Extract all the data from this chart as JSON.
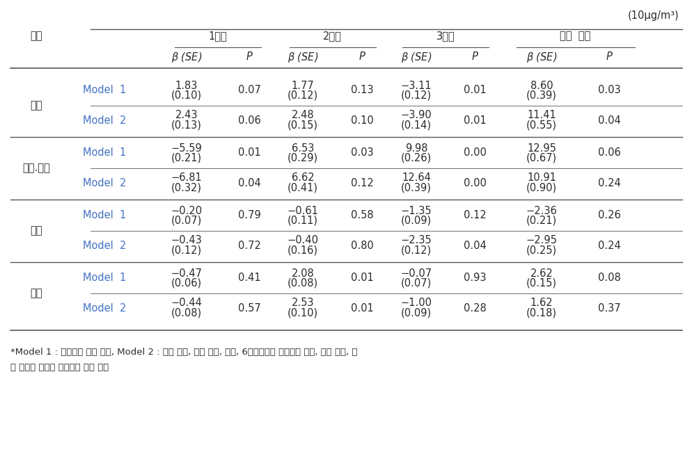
{
  "unit_label": "(10μg/m³)",
  "cities": [
    "서울",
    "천안.아산",
    "울산",
    "전체"
  ],
  "rows": [
    {
      "city": "서울",
      "model": "Model  1",
      "q1_beta": "1.83",
      "q1_se": "(0.10)",
      "q1_p": "0.07",
      "q2_beta": "1.77",
      "q2_se": "(0.12)",
      "q2_p": "0.13",
      "q3_beta": "−3.11",
      "q3_se": "(0.12)",
      "q3_p": "0.01",
      "total_beta": "8.60",
      "total_se": "(0.39)",
      "total_p": "0.03"
    },
    {
      "city": "서울",
      "model": "Model  2",
      "q1_beta": "2.43",
      "q1_se": "(0.13)",
      "q1_p": "0.06",
      "q2_beta": "2.48",
      "q2_se": "(0.15)",
      "q2_p": "0.10",
      "q3_beta": "−3.90",
      "q3_se": "(0.14)",
      "q3_p": "0.01",
      "total_beta": "11.41",
      "total_se": "(0.55)",
      "total_p": "0.04"
    },
    {
      "city": "천안.아산",
      "model": "Model  1",
      "q1_beta": "−5.59",
      "q1_se": "(0.21)",
      "q1_p": "0.01",
      "q2_beta": "6.53",
      "q2_se": "(0.29)",
      "q2_p": "0.03",
      "q3_beta": "9.98",
      "q3_se": "(0.26)",
      "q3_p": "0.00",
      "total_beta": "12.95",
      "total_se": "(0.67)",
      "total_p": "0.06"
    },
    {
      "city": "천안.아산",
      "model": "Model  2",
      "q1_beta": "−6.81",
      "q1_se": "(0.32)",
      "q1_p": "0.04",
      "q2_beta": "6.62",
      "q2_se": "(0.41)",
      "q2_p": "0.12",
      "q3_beta": "12.64",
      "q3_se": "(0.39)",
      "q3_p": "0.00",
      "total_beta": "10.91",
      "total_se": "(0.90)",
      "total_p": "0.24"
    },
    {
      "city": "울산",
      "model": "Model  1",
      "q1_beta": "−0.20",
      "q1_se": "(0.07)",
      "q1_p": "0.79",
      "q2_beta": "−0.61",
      "q2_se": "(0.11)",
      "q2_p": "0.58",
      "q3_beta": "−1.35",
      "q3_se": "(0.09)",
      "q3_p": "0.12",
      "total_beta": "−2.36",
      "total_se": "(0.21)",
      "total_p": "0.26"
    },
    {
      "city": "울산",
      "model": "Model  2",
      "q1_beta": "−0.43",
      "q1_se": "(0.12)",
      "q1_p": "0.72",
      "q2_beta": "−0.40",
      "q2_se": "(0.16)",
      "q2_p": "0.80",
      "q3_beta": "−2.35",
      "q3_se": "(0.12)",
      "q3_p": "0.04",
      "total_beta": "−2.95",
      "total_se": "(0.25)",
      "total_p": "0.24"
    },
    {
      "city": "전체",
      "model": "Model  1",
      "q1_beta": "−0.47",
      "q1_se": "(0.06)",
      "q1_p": "0.41",
      "q2_beta": "2.08",
      "q2_se": "(0.08)",
      "q2_p": "0.01",
      "q3_beta": "−0.07",
      "q3_se": "(0.07)",
      "q3_p": "0.93",
      "total_beta": "2.62",
      "total_se": "(0.15)",
      "total_p": "0.08"
    },
    {
      "city": "전체",
      "model": "Model  2",
      "q1_beta": "−0.44",
      "q1_se": "(0.08)",
      "q1_p": "0.57",
      "q2_beta": "2.53",
      "q2_se": "(0.10)",
      "q2_p": "0.01",
      "q3_beta": "−1.00",
      "q3_se": "(0.09)",
      "q3_p": "0.28",
      "total_beta": "1.62",
      "total_se": "(0.18)",
      "total_p": "0.37"
    }
  ],
  "footnote_line1": "*Model 1 : 단순선형 회귀 분서, Model 2 : 산모 나이, 교육 수준, 수입, 6개월에서의 모유수유 여부, 간접 흡연, 입",
  "footnote_line2": "신 주수를 보정한 다중선형 회귀 분서",
  "bg_color": "#ffffff",
  "text_color": "#2b2b2b",
  "blue_color": "#4472C4",
  "line_color": "#555555",
  "header_1q": "1분기",
  "header_2q": "2분기",
  "header_3q": "3분기",
  "header_total": "전체  기간",
  "header_city": "도시"
}
